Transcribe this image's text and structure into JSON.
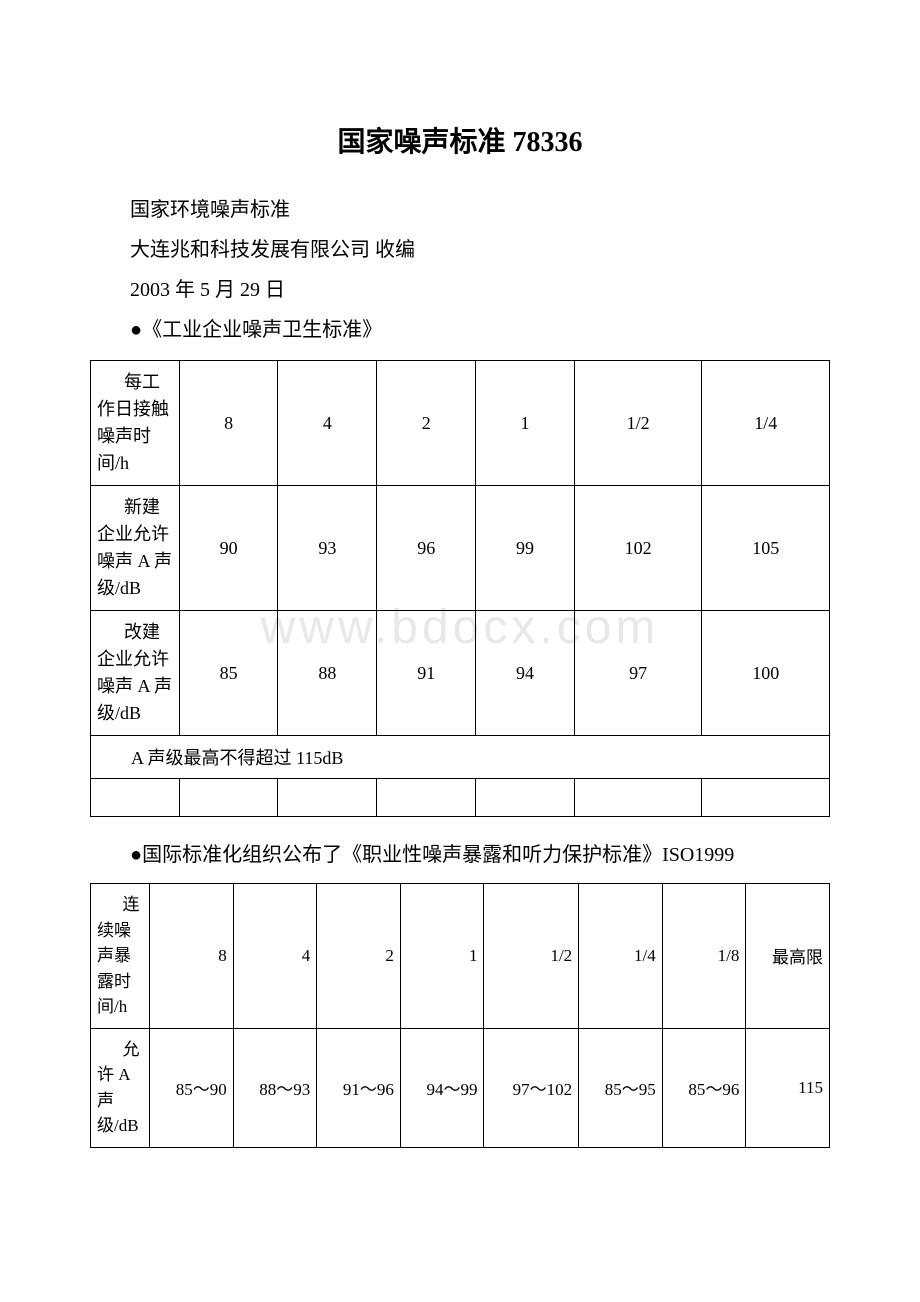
{
  "title": "国家噪声标准 78336",
  "intro": {
    "line1": "国家环境噪声标准",
    "line2": "大连兆和科技发展有限公司 收编",
    "line3": "2003 年 5 月 29 日",
    "line4": "●《工业企业噪声卫生标准》"
  },
  "table1": {
    "rows": [
      {
        "label": "每工作日接触噪声时间/h",
        "cells": [
          "8",
          "4",
          "2",
          "1",
          "1/2",
          "1/4"
        ]
      },
      {
        "label": "新建企业允许噪声 A 声级/dB",
        "cells": [
          "90",
          "93",
          "96",
          "99",
          "102",
          "105"
        ]
      },
      {
        "label": "改建企业允许噪声 A 声级/dB",
        "cells": [
          "85",
          "88",
          "91",
          "94",
          "97",
          "100"
        ]
      }
    ],
    "footer": "A 声级最高不得超过 115dB",
    "column_widths": [
      "12%",
      "14.6%",
      "14.6%",
      "14.6%",
      "14.6%",
      "14.6%",
      "14.6%"
    ]
  },
  "section2": "●国际标准化组织公布了《职业性噪声暴露和听力保护标准》ISO1999",
  "table2": {
    "rows": [
      {
        "label": "连续噪声暴露时间/h",
        "cells": [
          "8",
          "4",
          "2",
          "1",
          "1/2",
          "1/4",
          "1/8",
          "最高限"
        ]
      },
      {
        "label": "允许 A 声级/dB",
        "cells": [
          "85～90",
          "88～93",
          "91～96",
          "94～99",
          "97～102",
          "85～95",
          "85～96",
          "115"
        ]
      }
    ]
  },
  "styling": {
    "background_color": "#ffffff",
    "text_color": "#000000",
    "border_color": "#000000",
    "watermark_color": "#e8e8e8",
    "watermark_text": "www.bdocx.com",
    "title_fontsize": 28,
    "body_fontsize": 20,
    "table_fontsize": 18
  }
}
